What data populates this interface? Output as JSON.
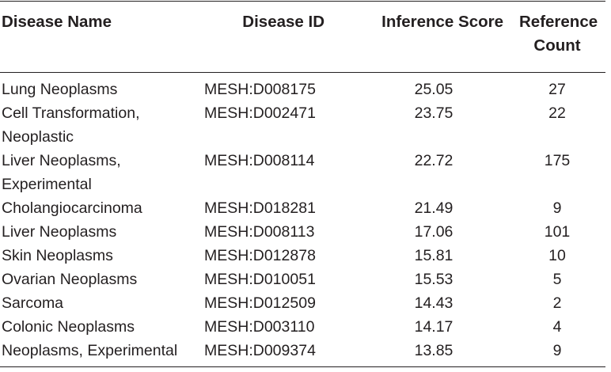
{
  "table": {
    "headers": {
      "disease_name": "Disease Name",
      "disease_id": "Disease ID",
      "inference_score": "Inference Score",
      "reference_count_line1": "Reference",
      "reference_count_line2": "Count"
    },
    "rows": [
      {
        "name_line1": "Lung Neoplasms",
        "name_line2": "",
        "id": "MESH:D008175",
        "score": "25.05",
        "count": "27"
      },
      {
        "name_line1": "Cell Transformation,",
        "name_line2": "Neoplastic",
        "id": "MESH:D002471",
        "score": "23.75",
        "count": "22"
      },
      {
        "name_line1": "Liver Neoplasms,",
        "name_line2": "Experimental",
        "id": "MESH:D008114",
        "score": "22.72",
        "count": "175"
      },
      {
        "name_line1": "Cholangiocarcinoma",
        "name_line2": "",
        "id": "MESH:D018281",
        "score": "21.49",
        "count": "9"
      },
      {
        "name_line1": "Liver Neoplasms",
        "name_line2": "",
        "id": "MESH:D008113",
        "score": "17.06",
        "count": "101"
      },
      {
        "name_line1": "Skin Neoplasms",
        "name_line2": "",
        "id": "MESH:D012878",
        "score": "15.81",
        "count": "10"
      },
      {
        "name_line1": "Ovarian Neoplasms",
        "name_line2": "",
        "id": "MESH:D010051",
        "score": "15.53",
        "count": "5"
      },
      {
        "name_line1": "Sarcoma",
        "name_line2": "",
        "id": "MESH:D012509",
        "score": "14.43",
        "count": "2"
      },
      {
        "name_line1": "Colonic Neoplasms",
        "name_line2": "",
        "id": "MESH:D003110",
        "score": "14.17",
        "count": "4"
      },
      {
        "name_line1": "Neoplasms, Experimental",
        "name_line2": "",
        "id": "MESH:D009374",
        "score": "13.85",
        "count": "9"
      }
    ]
  }
}
